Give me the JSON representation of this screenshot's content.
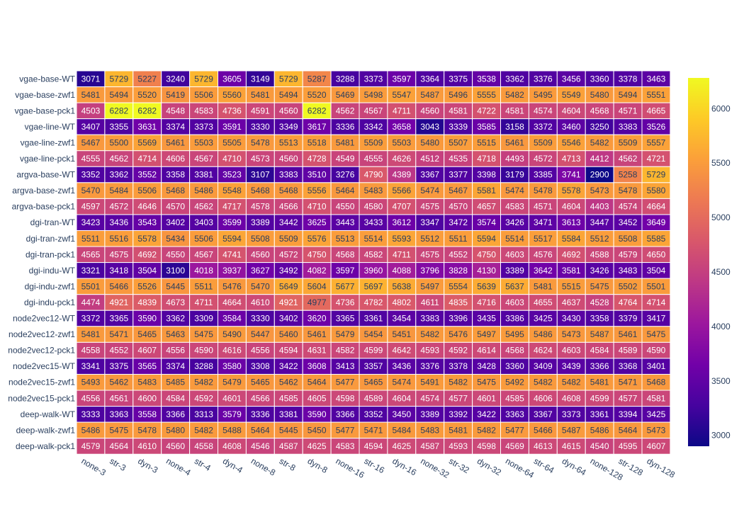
{
  "chart_data": {
    "type": "heatmap",
    "title": "",
    "xlabel": "",
    "ylabel": "",
    "x": [
      "none-3",
      "str-3",
      "dyn-3",
      "none-4",
      "str-4",
      "dyn-4",
      "none-8",
      "str-8",
      "dyn-8",
      "none-16",
      "str-16",
      "dyn-16",
      "none-32",
      "str-32",
      "dyn-32",
      "none-64",
      "str-64",
      "dyn-64",
      "none-128",
      "str-128",
      "dyn-128"
    ],
    "y": [
      "vgae-base-WT",
      "vgae-base-zwf1",
      "vgae-base-pck1",
      "vgae-line-WT",
      "vgae-line-zwf1",
      "vgae-line-pck1",
      "argva-base-WT",
      "argva-base-zwf1",
      "argva-base-pck1",
      "dgi-tran-WT",
      "dgi-tran-zwf1",
      "dgi-tran-pck1",
      "dgi-indu-WT",
      "dgi-indu-zwf1",
      "dgi-indu-pck1",
      "node2vec12-WT",
      "node2vec12-zwf1",
      "node2vec12-pck1",
      "node2vec15-WT",
      "node2vec15-zwf1",
      "node2vec15-pck1",
      "deep-walk-WT",
      "deep-walk-zwf1",
      "deep-walk-pck1"
    ],
    "z": [
      [
        3071,
        5729,
        5227,
        3240,
        5729,
        3605,
        3149,
        5729,
        5287,
        3288,
        3373,
        3597,
        3364,
        3375,
        3538,
        3362,
        3376,
        3456,
        3360,
        3378,
        3463
      ],
      [
        5481,
        5494,
        5520,
        5419,
        5506,
        5560,
        5481,
        5494,
        5520,
        5469,
        5498,
        5547,
        5487,
        5496,
        5555,
        5482,
        5495,
        5549,
        5480,
        5494,
        5551
      ],
      [
        4503,
        6282,
        6282,
        4548,
        4583,
        4736,
        4591,
        4560,
        6282,
        4562,
        4567,
        4711,
        4560,
        4581,
        4722,
        4581,
        4574,
        4604,
        4568,
        4571,
        4665
      ],
      [
        3407,
        3355,
        3631,
        3374,
        3373,
        3591,
        3330,
        3349,
        3617,
        3336,
        3342,
        3658,
        3043,
        3339,
        3585,
        3158,
        3372,
        3460,
        3250,
        3383,
        3526
      ],
      [
        5467,
        5500,
        5569,
        5461,
        5503,
        5505,
        5478,
        5513,
        5518,
        5481,
        5509,
        5503,
        5480,
        5507,
        5515,
        5461,
        5509,
        5546,
        5482,
        5509,
        5557
      ],
      [
        4555,
        4562,
        4714,
        4606,
        4567,
        4710,
        4573,
        4560,
        4728,
        4549,
        4555,
        4626,
        4512,
        4535,
        4718,
        4493,
        4572,
        4713,
        4412,
        4562,
        4721
      ],
      [
        3352,
        3362,
        3552,
        3358,
        3381,
        3523,
        3107,
        3383,
        3510,
        3276,
        4790,
        4389,
        3367,
        3377,
        3398,
        3179,
        3385,
        3741,
        2900,
        5258,
        5729
      ],
      [
        5470,
        5484,
        5506,
        5468,
        5486,
        5548,
        5468,
        5468,
        5556,
        5464,
        5483,
        5566,
        5474,
        5467,
        5581,
        5474,
        5478,
        5578,
        5473,
        5478,
        5580
      ],
      [
        4597,
        4572,
        4646,
        4570,
        4562,
        4717,
        4578,
        4566,
        4710,
        4550,
        4580,
        4707,
        4575,
        4570,
        4657,
        4583,
        4571,
        4604,
        4403,
        4574,
        4664
      ],
      [
        3423,
        3436,
        3543,
        3402,
        3403,
        3599,
        3389,
        3442,
        3625,
        3443,
        3433,
        3612,
        3347,
        3472,
        3574,
        3426,
        3471,
        3613,
        3447,
        3452,
        3649
      ],
      [
        5511,
        5516,
        5578,
        5434,
        5506,
        5594,
        5508,
        5509,
        5576,
        5513,
        5514,
        5593,
        5512,
        5511,
        5594,
        5514,
        5517,
        5584,
        5512,
        5508,
        5585
      ],
      [
        4565,
        4575,
        4692,
        4550,
        4567,
        4741,
        4560,
        4572,
        4750,
        4568,
        4582,
        4711,
        4575,
        4552,
        4750,
        4603,
        4576,
        4692,
        4588,
        4579,
        4650
      ],
      [
        3321,
        3418,
        3504,
        3100,
        4018,
        3937,
        3627,
        3492,
        4082,
        3597,
        3960,
        4088,
        3796,
        3828,
        4130,
        3389,
        3642,
        3581,
        3426,
        3483,
        3504
      ],
      [
        5501,
        5466,
        5526,
        5445,
        5511,
        5476,
        5470,
        5649,
        5604,
        5677,
        5697,
        5638,
        5497,
        5554,
        5639,
        5637,
        5481,
        5515,
        5475,
        5502,
        5501
      ],
      [
        4474,
        4921,
        4839,
        4673,
        4711,
        4664,
        4610,
        4921,
        4977,
        4736,
        4782,
        4802,
        4611,
        4835,
        4716,
        4603,
        4655,
        4637,
        4528,
        4764,
        4714
      ],
      [
        3372,
        3365,
        3590,
        3362,
        3309,
        3584,
        3330,
        3402,
        3620,
        3365,
        3361,
        3454,
        3383,
        3396,
        3435,
        3386,
        3425,
        3430,
        3358,
        3379,
        3417
      ],
      [
        5481,
        5471,
        5465,
        5463,
        5475,
        5490,
        5447,
        5460,
        5461,
        5479,
        5454,
        5451,
        5482,
        5476,
        5497,
        5495,
        5486,
        5473,
        5487,
        5461,
        5475
      ],
      [
        4558,
        4552,
        4607,
        4556,
        4590,
        4616,
        4556,
        4594,
        4631,
        4582,
        4599,
        4642,
        4593,
        4592,
        4614,
        4568,
        4624,
        4603,
        4584,
        4589,
        4590
      ],
      [
        3341,
        3375,
        3565,
        3374,
        3288,
        3580,
        3308,
        3422,
        3608,
        3413,
        3357,
        3436,
        3376,
        3378,
        3428,
        3360,
        3409,
        3439,
        3366,
        3368,
        3401
      ],
      [
        5493,
        5462,
        5483,
        5485,
        5482,
        5479,
        5465,
        5462,
        5464,
        5477,
        5465,
        5474,
        5491,
        5482,
        5475,
        5492,
        5482,
        5482,
        5481,
        5471,
        5468
      ],
      [
        4556,
        4561,
        4600,
        4584,
        4592,
        4601,
        4566,
        4585,
        4605,
        4598,
        4589,
        4604,
        4574,
        4577,
        4601,
        4585,
        4606,
        4608,
        4599,
        4577,
        4581
      ],
      [
        3333,
        3363,
        3558,
        3366,
        3313,
        3579,
        3336,
        3381,
        3590,
        3366,
        3352,
        3450,
        3389,
        3392,
        3422,
        3363,
        3367,
        3373,
        3361,
        3394,
        3425
      ],
      [
        5486,
        5475,
        5478,
        5480,
        5482,
        5488,
        5464,
        5445,
        5450,
        5477,
        5471,
        5484,
        5483,
        5481,
        5482,
        5477,
        5466,
        5487,
        5486,
        5464,
        5473
      ],
      [
        4579,
        4564,
        4610,
        4560,
        4558,
        4608,
        4546,
        4587,
        4625,
        4583,
        4594,
        4625,
        4587,
        4593,
        4598,
        4569,
        4613,
        4615,
        4540,
        4595,
        4607
      ]
    ],
    "zmin": 2900,
    "zmax": 6282,
    "colorscale": "plasma",
    "colorbar_ticks": [
      3000,
      3500,
      4000,
      4500,
      5000,
      5500,
      6000
    ],
    "colorbar_placement": "right",
    "cell_labels": true,
    "grid": false
  }
}
